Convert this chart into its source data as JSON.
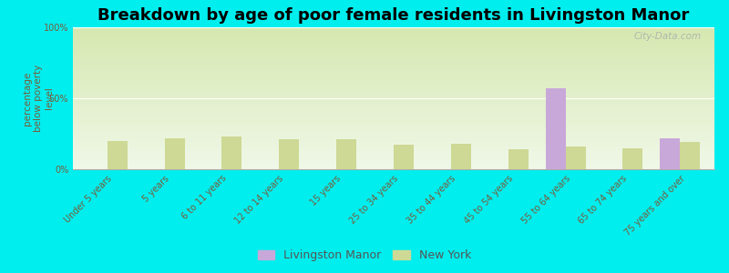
{
  "title": "Breakdown by age of poor female residents in Livingston Manor",
  "ylabel": "percentage\nbelow poverty\nlevel",
  "categories": [
    "Under 5 years",
    "5 years",
    "6 to 11 years",
    "12 to 14 years",
    "15 years",
    "25 to 34 years",
    "35 to 44 years",
    "45 to 54 years",
    "55 to 64 years",
    "65 to 74 years",
    "75 years and over"
  ],
  "livingston_values": [
    0,
    0,
    0,
    0,
    0,
    0,
    0,
    0,
    57,
    0,
    22
  ],
  "newyork_values": [
    20,
    22,
    23,
    21,
    21,
    17,
    18,
    14,
    16,
    15,
    19
  ],
  "livingston_color": "#c8a8d8",
  "newyork_color": "#cdd994",
  "background_color": "#00eeee",
  "plot_bg_top": "#d6e8b0",
  "plot_bg_bottom": "#f0f8e8",
  "ylim": [
    0,
    100
  ],
  "yticks": [
    0,
    50,
    100
  ],
  "ytick_labels": [
    "0%",
    "50%",
    "100%"
  ],
  "bar_width": 0.35,
  "legend_livingston": "Livingston Manor",
  "legend_newyork": "New York",
  "title_fontsize": 13,
  "axis_label_fontsize": 7.5,
  "tick_fontsize": 7,
  "watermark": "City-Data.com"
}
